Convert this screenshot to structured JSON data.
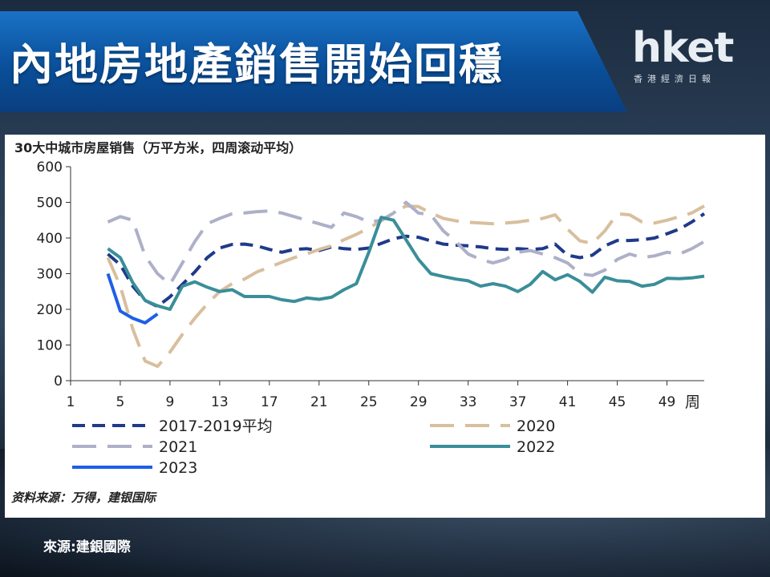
{
  "header": {
    "title": "內地房地產銷售開始回穩",
    "logo_main": "hket",
    "logo_sub": "香港經濟日報"
  },
  "footer": {
    "source": "來源:建銀國際"
  },
  "chart_data": {
    "type": "line",
    "title": "30大中城市房屋销售（万平方米，四周滚动平均）",
    "source_note": "资料来源：万得，建银国际",
    "x_unit": "周",
    "xlim": [
      1,
      52
    ],
    "ylim": [
      0,
      600
    ],
    "y_ticks": [
      0,
      100,
      200,
      300,
      400,
      500,
      600
    ],
    "x_ticks": [
      1,
      5,
      9,
      13,
      17,
      21,
      25,
      29,
      33,
      37,
      41,
      45,
      49
    ],
    "grid": false,
    "legend_position": "bottom",
    "series": [
      {
        "name": "2017-2019平均",
        "color": "#1f3a8a",
        "dash": "dense",
        "x": [
          4,
          5,
          6,
          7,
          8,
          9,
          10,
          11,
          12,
          13,
          14,
          15,
          16,
          17,
          18,
          19,
          20,
          21,
          22,
          23,
          24,
          25,
          26,
          27,
          28,
          29,
          30,
          31,
          32,
          33,
          34,
          35,
          36,
          37,
          38,
          39,
          40,
          41,
          42,
          43,
          44,
          45,
          46,
          47,
          48,
          49,
          50,
          51,
          52
        ],
        "y": [
          355,
          325,
          265,
          225,
          208,
          235,
          270,
          305,
          345,
          372,
          382,
          383,
          378,
          368,
          360,
          368,
          370,
          365,
          375,
          370,
          368,
          372,
          385,
          398,
          405,
          402,
          392,
          383,
          380,
          378,
          375,
          370,
          368,
          370,
          368,
          370,
          383,
          352,
          345,
          352,
          378,
          393,
          393,
          395,
          400,
          412,
          425,
          445,
          468
        ]
      },
      {
        "name": "2020",
        "color": "#d8bf9d",
        "dash": "long",
        "x": [
          4,
          5,
          6,
          7,
          8,
          9,
          10,
          11,
          12,
          13,
          14,
          15,
          16,
          17,
          18,
          19,
          20,
          21,
          22,
          23,
          24,
          25,
          26,
          27,
          28,
          29,
          30,
          31,
          32,
          33,
          34,
          35,
          36,
          37,
          38,
          39,
          40,
          41,
          42,
          43,
          44,
          45,
          46,
          47,
          48,
          49,
          50,
          51,
          52
        ],
        "y": [
          345,
          265,
          145,
          55,
          40,
          80,
          130,
          175,
          215,
          250,
          272,
          285,
          305,
          318,
          332,
          345,
          355,
          368,
          378,
          395,
          410,
          428,
          448,
          470,
          490,
          488,
          470,
          455,
          448,
          444,
          442,
          440,
          442,
          445,
          450,
          455,
          465,
          425,
          392,
          385,
          420,
          468,
          465,
          445,
          442,
          450,
          460,
          470,
          490
        ]
      },
      {
        "name": "2021",
        "color": "#adb0c8",
        "dash": "long",
        "x": [
          4,
          5,
          6,
          7,
          8,
          9,
          10,
          11,
          12,
          13,
          14,
          15,
          16,
          17,
          18,
          19,
          20,
          21,
          22,
          23,
          24,
          25,
          26,
          27,
          28,
          29,
          30,
          31,
          32,
          33,
          34,
          35,
          36,
          37,
          38,
          39,
          40,
          41,
          42,
          43,
          44,
          45,
          46,
          47,
          48,
          49,
          50,
          51,
          52
        ],
        "y": [
          445,
          460,
          450,
          350,
          300,
          270,
          330,
          390,
          440,
          455,
          468,
          470,
          474,
          476,
          470,
          460,
          450,
          440,
          430,
          470,
          460,
          445,
          450,
          470,
          500,
          470,
          465,
          420,
          390,
          355,
          340,
          330,
          340,
          360,
          365,
          355,
          345,
          330,
          300,
          295,
          310,
          340,
          355,
          345,
          350,
          360,
          355,
          370,
          390
        ]
      },
      {
        "name": "2022",
        "color": "#3a8e99",
        "dash": "solid",
        "x": [
          4,
          5,
          6,
          7,
          8,
          9,
          10,
          11,
          12,
          13,
          14,
          15,
          16,
          17,
          18,
          19,
          20,
          21,
          22,
          23,
          24,
          25,
          26,
          27,
          28,
          29,
          30,
          31,
          32,
          33,
          34,
          35,
          36,
          37,
          38,
          39,
          40,
          41,
          42,
          43,
          44,
          45,
          46,
          47,
          48,
          49,
          50,
          51,
          52
        ],
        "y": [
          370,
          345,
          275,
          225,
          210,
          200,
          265,
          277,
          262,
          250,
          255,
          236,
          236,
          236,
          227,
          222,
          232,
          228,
          234,
          255,
          272,
          360,
          458,
          450,
          395,
          340,
          300,
          292,
          285,
          280,
          265,
          272,
          265,
          250,
          270,
          306,
          283,
          297,
          278,
          248,
          290,
          280,
          278,
          265,
          270,
          287,
          286,
          288,
          293
        ]
      },
      {
        "name": "2023",
        "color": "#1e5fe6",
        "dash": "solid",
        "x": [
          4,
          5,
          6,
          7,
          8
        ],
        "y": [
          300,
          195,
          175,
          162,
          187
        ]
      }
    ]
  }
}
